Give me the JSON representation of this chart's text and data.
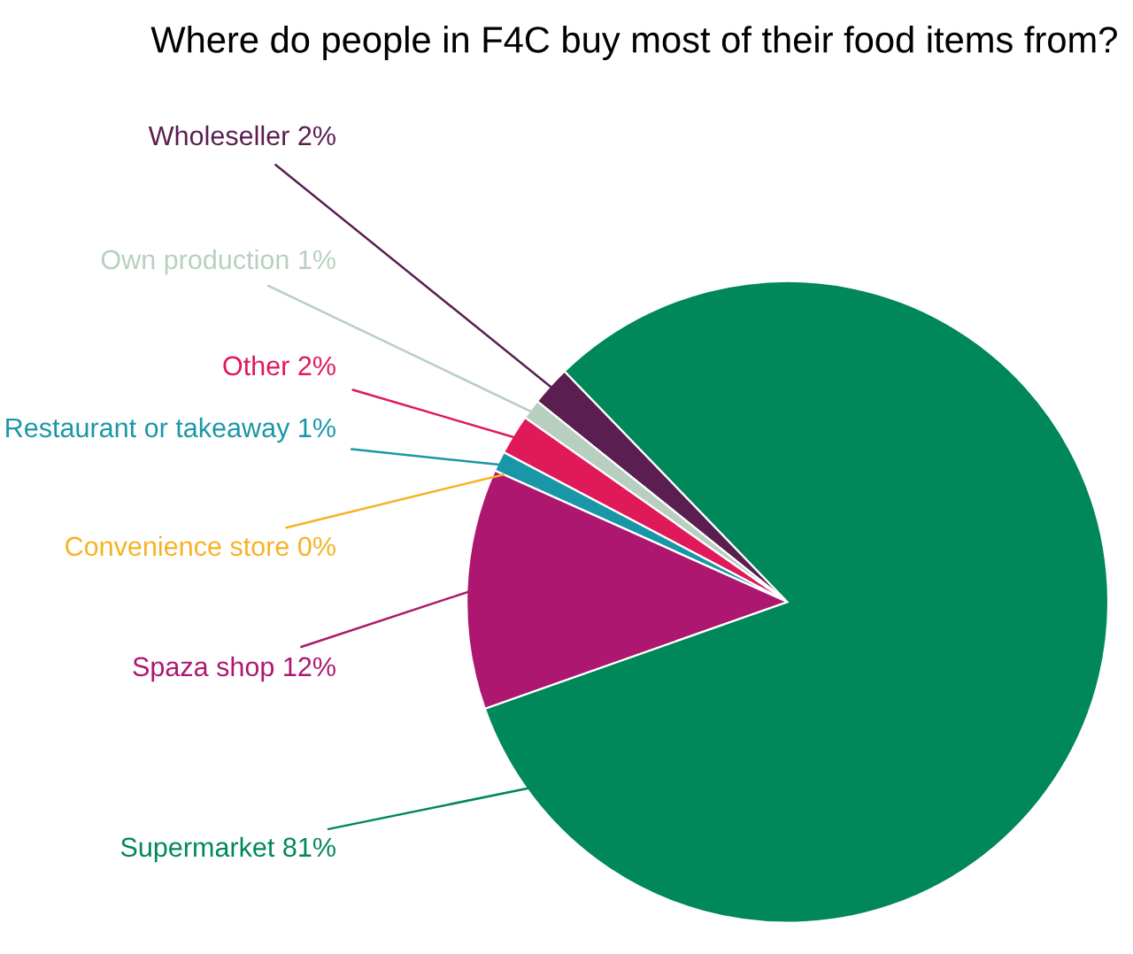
{
  "chart_data": {
    "type": "pie",
    "title": "Where do people in F4C buy most of their food items from?",
    "categories": [
      "Wholeseller",
      "Own production",
      "Other",
      "Restaurant or takeaway",
      "Convenience store",
      "Spaza shop",
      "Supermarket"
    ],
    "values": [
      2,
      1,
      2,
      1,
      0,
      12,
      81
    ],
    "value_labels": [
      "2%",
      "1%",
      "2%",
      "1%",
      "0%",
      "12%",
      "81%"
    ],
    "colors": [
      "#5a1f50",
      "#b8cfc0",
      "#e0195a",
      "#1a97a6",
      "#f5b224",
      "#ae1770",
      "#00875a"
    ],
    "legend": false
  }
}
